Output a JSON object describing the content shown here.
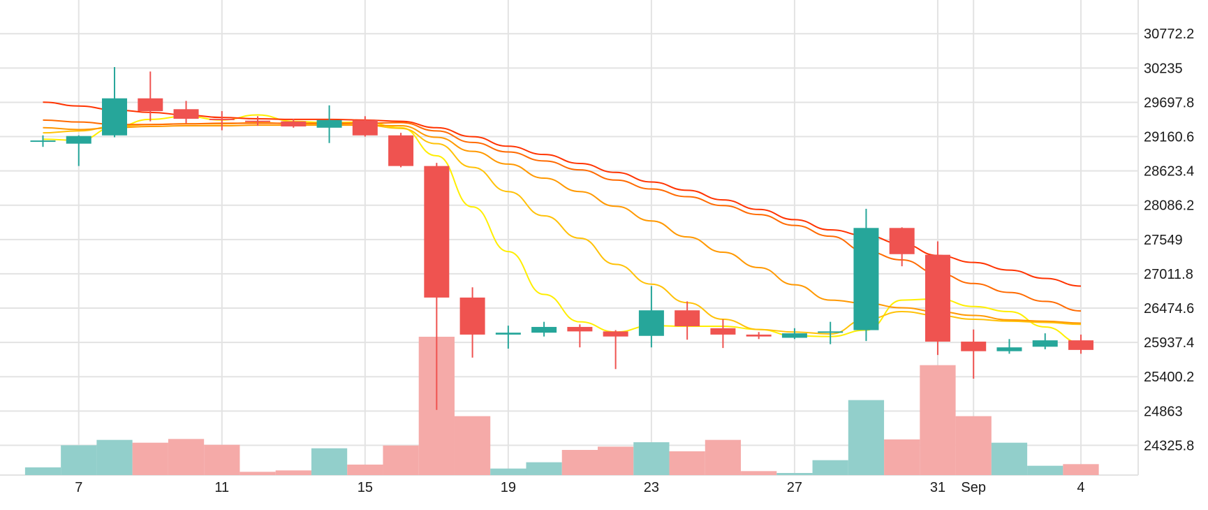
{
  "chart_data": {
    "type": "candlestick",
    "colors": {
      "up": "#26a69a",
      "down": "#ef5350",
      "up_volume": "#92cfcb",
      "down_volume": "#f5aaa8",
      "grid": "#e3e3e3",
      "ma_lines": [
        "#ffee00",
        "#ffc107",
        "#ff9800",
        "#ff4500"
      ]
    },
    "y_axis": {
      "position": "right",
      "ticks": [
        "30772.2",
        "30235",
        "29697.8",
        "29160.6",
        "28623.4",
        "28086.2",
        "27549",
        "27011.8",
        "26474.6",
        "25937.4",
        "25400.2",
        "24863",
        "24325.8"
      ],
      "range": [
        23860,
        31300
      ]
    },
    "x_axis": {
      "ticks": [
        {
          "day": 7,
          "label": "7"
        },
        {
          "day": 11,
          "label": "11"
        },
        {
          "day": 15,
          "label": "15"
        },
        {
          "day": 19,
          "label": "19"
        },
        {
          "day": 23,
          "label": "23"
        },
        {
          "day": 27,
          "label": "27"
        },
        {
          "day": 31,
          "label": "31"
        },
        {
          "day": 32,
          "label": "Sep"
        },
        {
          "day": 35,
          "label": "4"
        }
      ],
      "range": [
        4.8,
        36.6
      ]
    },
    "grid": true,
    "candles": [
      {
        "day": 6,
        "open": 29100,
        "high": 29180,
        "low": 29000,
        "close": 29100
      },
      {
        "day": 7,
        "open": 29050,
        "high": 29180,
        "low": 28700,
        "close": 29170
      },
      {
        "day": 8,
        "open": 29180,
        "high": 30250,
        "low": 29150,
        "close": 29760
      },
      {
        "day": 9,
        "open": 29760,
        "high": 30180,
        "low": 29400,
        "close": 29560
      },
      {
        "day": 10,
        "open": 29590,
        "high": 29720,
        "low": 29370,
        "close": 29440
      },
      {
        "day": 11,
        "open": 29440,
        "high": 29560,
        "low": 29260,
        "close": 29420
      },
      {
        "day": 12,
        "open": 29410,
        "high": 29480,
        "low": 29330,
        "close": 29390
      },
      {
        "day": 13,
        "open": 29400,
        "high": 29440,
        "low": 29300,
        "close": 29320
      },
      {
        "day": 14,
        "open": 29300,
        "high": 29650,
        "low": 29060,
        "close": 29420
      },
      {
        "day": 15,
        "open": 29420,
        "high": 29480,
        "low": 29160,
        "close": 29180
      },
      {
        "day": 16,
        "open": 29180,
        "high": 29220,
        "low": 28680,
        "close": 28700
      },
      {
        "day": 17,
        "open": 28700,
        "high": 28750,
        "low": 24880,
        "close": 26640
      },
      {
        "day": 18,
        "open": 26640,
        "high": 26800,
        "low": 25700,
        "close": 26060
      },
      {
        "day": 19,
        "open": 26060,
        "high": 26200,
        "low": 25840,
        "close": 26090
      },
      {
        "day": 20,
        "open": 26090,
        "high": 26260,
        "low": 26030,
        "close": 26180
      },
      {
        "day": 21,
        "open": 26180,
        "high": 26220,
        "low": 25860,
        "close": 26110
      },
      {
        "day": 22,
        "open": 26110,
        "high": 26130,
        "low": 25520,
        "close": 26030
      },
      {
        "day": 23,
        "open": 26040,
        "high": 26820,
        "low": 25860,
        "close": 26440
      },
      {
        "day": 24,
        "open": 26440,
        "high": 26580,
        "low": 25980,
        "close": 26190
      },
      {
        "day": 25,
        "open": 26160,
        "high": 26300,
        "low": 25850,
        "close": 26060
      },
      {
        "day": 26,
        "open": 26060,
        "high": 26100,
        "low": 25990,
        "close": 26030
      },
      {
        "day": 27,
        "open": 26010,
        "high": 26160,
        "low": 25990,
        "close": 26080
      },
      {
        "day": 28,
        "open": 26100,
        "high": 26260,
        "low": 25910,
        "close": 26110
      },
      {
        "day": 29,
        "open": 26130,
        "high": 28030,
        "low": 25960,
        "close": 27730
      },
      {
        "day": 30,
        "open": 27730,
        "high": 27740,
        "low": 27130,
        "close": 27320
      },
      {
        "day": 31,
        "open": 27310,
        "high": 27520,
        "low": 25740,
        "close": 25950
      },
      {
        "day": 32,
        "open": 25950,
        "high": 26140,
        "low": 25370,
        "close": 25800
      },
      {
        "day": 33,
        "open": 25800,
        "high": 25990,
        "low": 25760,
        "close": 25860
      },
      {
        "day": 34,
        "open": 25870,
        "high": 26080,
        "low": 25830,
        "close": 25970
      },
      {
        "day": 35,
        "open": 25970,
        "high": 26060,
        "low": 25760,
        "close": 25820
      }
    ],
    "volume": {
      "max": 6000,
      "values": [
        330,
        1280,
        1510,
        1390,
        1550,
        1300,
        140,
        200,
        1150,
        450,
        1270,
        5940,
        2530,
        280,
        550,
        1080,
        1220,
        1410,
        1020,
        1510,
        170,
        90,
        640,
        3220,
        1530,
        4720,
        2530,
        1390,
        400,
        470
      ]
    },
    "ma_series": [
      {
        "color": "#ffee00",
        "days": [
          6,
          7,
          8,
          9,
          10,
          11,
          12,
          13,
          14,
          15,
          16,
          17,
          18,
          19,
          20,
          21,
          22,
          23,
          24,
          25,
          26,
          27,
          28,
          29,
          30,
          31,
          32,
          33,
          34,
          35
        ],
        "values": [
          29120,
          29100,
          29310,
          29430,
          29480,
          29420,
          29500,
          29400,
          29380,
          29390,
          29300,
          28860,
          28060,
          27360,
          26690,
          26260,
          26100,
          26200,
          26190,
          26190,
          26140,
          26040,
          26030,
          26130,
          26600,
          26620,
          26500,
          26420,
          26180,
          25930
        ]
      },
      {
        "color": "#ffc107",
        "days": [
          6,
          7,
          8,
          9,
          10,
          11,
          12,
          13,
          14,
          15,
          16,
          17,
          18,
          19,
          20,
          21,
          22,
          23,
          24,
          25,
          26,
          27,
          28,
          29,
          30,
          31,
          32,
          33,
          34,
          35
        ],
        "values": [
          29220,
          29250,
          29320,
          29350,
          29360,
          29360,
          29380,
          29360,
          29360,
          29340,
          29290,
          29050,
          28680,
          28300,
          27920,
          27570,
          27160,
          26850,
          26560,
          26300,
          26140,
          26100,
          26070,
          26300,
          26420,
          26360,
          26300,
          26270,
          26250,
          26220
        ]
      },
      {
        "color": "#ff9800",
        "days": [
          6,
          7,
          8,
          9,
          10,
          11,
          12,
          13,
          14,
          15,
          16,
          17,
          18,
          19,
          20,
          21,
          22,
          23,
          24,
          25,
          26,
          27,
          28,
          29,
          30,
          31,
          32,
          33,
          34,
          35
        ],
        "values": [
          29300,
          29270,
          29300,
          29320,
          29330,
          29330,
          29340,
          29340,
          29340,
          29340,
          29330,
          29150,
          28930,
          28730,
          28510,
          28300,
          28070,
          27840,
          27590,
          27350,
          27110,
          26840,
          26600,
          26550,
          26480,
          26420,
          26360,
          26290,
          26270,
          26240
        ]
      },
      {
        "color": "#ff6a00",
        "days": [
          6,
          7,
          8,
          9,
          10,
          11,
          12,
          13,
          14,
          15,
          16,
          17,
          18,
          19,
          20,
          21,
          22,
          23,
          24,
          25,
          26,
          27,
          28,
          29,
          30,
          31,
          32,
          33,
          34,
          35
        ],
        "values": [
          29420,
          29390,
          29350,
          29350,
          29360,
          29370,
          29370,
          29370,
          29370,
          29370,
          29380,
          29250,
          29070,
          28920,
          28780,
          28640,
          28480,
          28340,
          28220,
          28080,
          27940,
          27770,
          27600,
          27360,
          27230,
          27020,
          26860,
          26720,
          26580,
          26430
        ]
      },
      {
        "color": "#ff3300",
        "days": [
          6,
          7,
          8,
          9,
          10,
          11,
          12,
          13,
          14,
          15,
          16,
          17,
          18,
          19,
          20,
          21,
          22,
          23,
          24,
          25,
          26,
          27,
          28,
          29,
          30,
          31,
          32,
          33,
          34,
          35
        ],
        "values": [
          29700,
          29640,
          29580,
          29540,
          29500,
          29460,
          29440,
          29430,
          29430,
          29420,
          29400,
          29300,
          29160,
          29010,
          28880,
          28740,
          28600,
          28450,
          28320,
          28170,
          28020,
          27860,
          27700,
          27610,
          27480,
          27300,
          27190,
          27070,
          26940,
          26820
        ]
      }
    ]
  }
}
